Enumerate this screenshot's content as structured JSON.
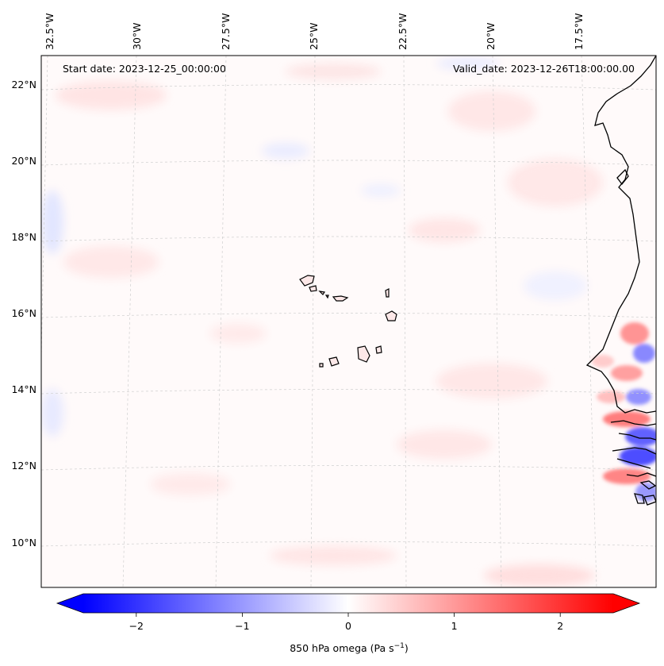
{
  "map": {
    "start_label": "Start date: 2023-12-25_00:00:00",
    "valid_label": "Valid_date: 2023-12-26T18:00:00.00",
    "lon_labels": [
      "32.5°W",
      "30°W",
      "27.5°W",
      "25°W",
      "22.5°W",
      "20°W",
      "17.5°W"
    ],
    "lat_labels": [
      "22°N",
      "20°N",
      "18°N",
      "16°N",
      "14°N",
      "12°N",
      "10°N"
    ],
    "field_color_positive": "#ff0000",
    "field_color_negative": "#0000ff"
  },
  "colorbar": {
    "ticks": [
      "−2",
      "−1",
      "0",
      "1",
      "2"
    ],
    "tick_values": [
      -2,
      -1,
      0,
      1,
      2
    ],
    "range": [
      -2.5,
      2.5
    ],
    "label_main": "850 hPa omega (Pa s",
    "label_exp": "−1",
    "label_close": ")"
  }
}
